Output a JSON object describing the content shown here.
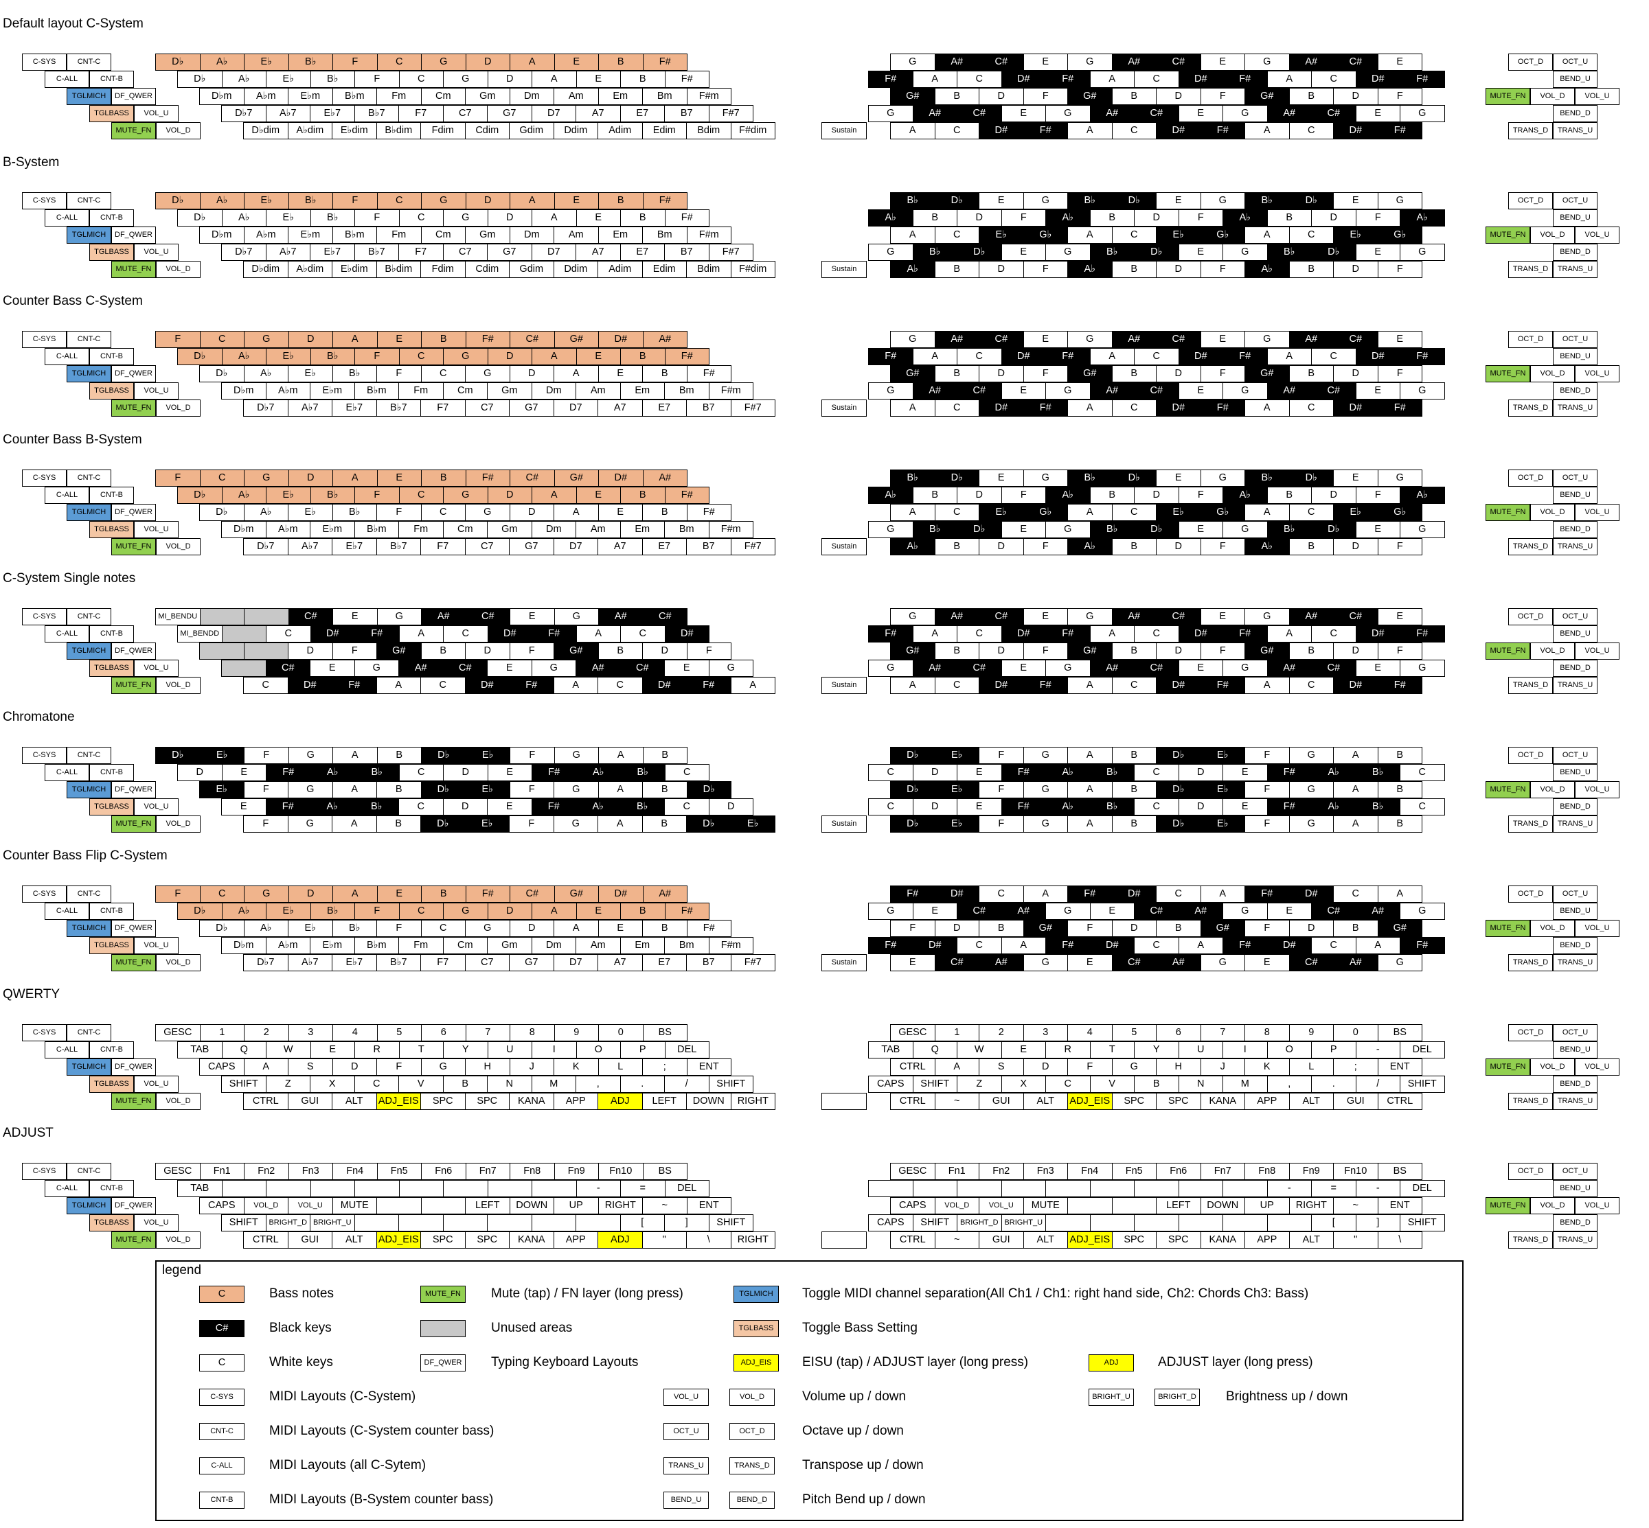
{
  "titles": [
    "Default layout C-System",
    "B-System",
    "Counter Bass C-System",
    "Counter Bass B-System",
    "C-System Single notes",
    "Chromatone",
    "Counter Bass Flip C-System",
    "QWERTY",
    "ADJUST"
  ],
  "controls": {
    "c_sys": "C-SYS",
    "cnt_c": "CNT-C",
    "c_all": "C-ALL",
    "cnt_b": "CNT-B",
    "tglmich": "TGLMICH",
    "df_qwer": "DF_QWER",
    "tglbass": "TGLBASS",
    "vol_u": "VOL_U",
    "vol_d": "VOL_D",
    "mute_fn": "MUTE_FN",
    "oct_d": "OCT_D",
    "oct_u": "OCT_U",
    "bend_u": "BEND_U",
    "bend_d": "BEND_D",
    "trans_d": "TRANS_D",
    "trans_u": "TRANS_U",
    "sustain": "Sustain"
  },
  "layouts": [
    {
      "rows": [
        [
          "b:D♭",
          "b:A♭",
          "b:E♭",
          "b:B♭",
          "b:F",
          "b:C",
          "b:G",
          "b:D",
          "b:A",
          "b:E",
          "b:B",
          "b:F#"
        ],
        [
          "D♭",
          "A♭",
          "E♭",
          "B♭",
          "F",
          "C",
          "G",
          "D",
          "A",
          "E",
          "B",
          "F#"
        ],
        [
          "D♭m",
          "A♭m",
          "E♭m",
          "B♭m",
          "Fm",
          "Cm",
          "Gm",
          "Dm",
          "Am",
          "Em",
          "Bm",
          "F#m"
        ],
        [
          "D♭7",
          "A♭7",
          "E♭7",
          "B♭7",
          "F7",
          "C7",
          "G7",
          "D7",
          "A7",
          "E7",
          "B7",
          "F#7"
        ],
        [
          "D♭dim",
          "A♭dim",
          "E♭dim",
          "B♭dim",
          "Fdim",
          "Cdim",
          "Gdim",
          "Ddim",
          "Adim",
          "Edim",
          "Bdim",
          "F#dim"
        ]
      ],
      "right": "C"
    },
    {
      "rows": [
        [
          "b:D♭",
          "b:A♭",
          "b:E♭",
          "b:B♭",
          "b:F",
          "b:C",
          "b:G",
          "b:D",
          "b:A",
          "b:E",
          "b:B",
          "b:F#"
        ],
        [
          "D♭",
          "A♭",
          "E♭",
          "B♭",
          "F",
          "C",
          "G",
          "D",
          "A",
          "E",
          "B",
          "F#"
        ],
        [
          "D♭m",
          "A♭m",
          "E♭m",
          "B♭m",
          "Fm",
          "Cm",
          "Gm",
          "Dm",
          "Am",
          "Em",
          "Bm",
          "F#m"
        ],
        [
          "D♭7",
          "A♭7",
          "E♭7",
          "B♭7",
          "F7",
          "C7",
          "G7",
          "D7",
          "A7",
          "E7",
          "B7",
          "F#7"
        ],
        [
          "D♭dim",
          "A♭dim",
          "E♭dim",
          "B♭dim",
          "Fdim",
          "Cdim",
          "Gdim",
          "Ddim",
          "Adim",
          "Edim",
          "Bdim",
          "F#dim"
        ]
      ],
      "right": "B"
    },
    {
      "rows": [
        [
          "b:F",
          "b:C",
          "b:G",
          "b:D",
          "b:A",
          "b:E",
          "b:B",
          "b:F#",
          "b:C#",
          "b:G#",
          "b:D#",
          "b:A#"
        ],
        [
          "b:D♭",
          "b:A♭",
          "b:E♭",
          "b:B♭",
          "b:F",
          "b:C",
          "b:G",
          "b:D",
          "b:A",
          "b:E",
          "b:B",
          "b:F#"
        ],
        [
          "D♭",
          "A♭",
          "E♭",
          "B♭",
          "F",
          "C",
          "G",
          "D",
          "A",
          "E",
          "B",
          "F#"
        ],
        [
          "D♭m",
          "A♭m",
          "E♭m",
          "B♭m",
          "Fm",
          "Cm",
          "Gm",
          "Dm",
          "Am",
          "Em",
          "Bm",
          "F#m"
        ],
        [
          "D♭7",
          "A♭7",
          "E♭7",
          "B♭7",
          "F7",
          "C7",
          "G7",
          "D7",
          "A7",
          "E7",
          "B7",
          "F#7"
        ]
      ],
      "right": "C"
    },
    {
      "rows": [
        [
          "b:F",
          "b:C",
          "b:G",
          "b:D",
          "b:A",
          "b:E",
          "b:B",
          "b:F#",
          "b:C#",
          "b:G#",
          "b:D#",
          "b:A#"
        ],
        [
          "b:D♭",
          "b:A♭",
          "b:E♭",
          "b:B♭",
          "b:F",
          "b:C",
          "b:G",
          "b:D",
          "b:A",
          "b:E",
          "b:B",
          "b:F#"
        ],
        [
          "D♭",
          "A♭",
          "E♭",
          "B♭",
          "F",
          "C",
          "G",
          "D",
          "A",
          "E",
          "B",
          "F#"
        ],
        [
          "D♭m",
          "A♭m",
          "E♭m",
          "B♭m",
          "Fm",
          "Cm",
          "Gm",
          "Dm",
          "Am",
          "Em",
          "Bm",
          "F#m"
        ],
        [
          "D♭7",
          "A♭7",
          "E♭7",
          "B♭7",
          "F7",
          "C7",
          "G7",
          "D7",
          "A7",
          "E7",
          "B7",
          "F#7"
        ]
      ],
      "right": "B"
    },
    {
      "rows": [
        [
          "s:MI_BENDU",
          "g:",
          "g:",
          "k:C#",
          "E",
          "G",
          "k:A#",
          "k:C#",
          "E",
          "G",
          "k:A#",
          "k:C#"
        ],
        [
          "s:MI_BENDD",
          "g:",
          "C",
          "k:D#",
          "k:F#",
          "A",
          "C",
          "k:D#",
          "k:F#",
          "A",
          "C",
          "k:D#"
        ],
        [
          "g:",
          "g:",
          "D",
          "F",
          "k:G#",
          "B",
          "D",
          "F",
          "k:G#",
          "B",
          "D",
          "F"
        ],
        [
          "g:",
          "k:C#",
          "E",
          "G",
          "k:A#",
          "k:C#",
          "E",
          "G",
          "k:A#",
          "k:C#",
          "E",
          "G"
        ],
        [
          "C",
          "k:D#",
          "k:F#",
          "A",
          "C",
          "k:D#",
          "k:F#",
          "A",
          "C",
          "k:D#",
          "k:F#",
          "A"
        ]
      ],
      "right": "C"
    },
    {
      "rows": [
        [
          "k:D♭",
          "k:E♭",
          "F",
          "G",
          "A",
          "B",
          "k:D♭",
          "k:E♭",
          "F",
          "G",
          "A",
          "B"
        ],
        [
          "D",
          "E",
          "k:F#",
          "k:A♭",
          "k:B♭",
          "C",
          "D",
          "E",
          "k:F#",
          "k:A♭",
          "k:B♭",
          "C"
        ],
        [
          "k:E♭",
          "F",
          "G",
          "A",
          "B",
          "k:D♭",
          "k:E♭",
          "F",
          "G",
          "A",
          "B",
          "k:D♭"
        ],
        [
          "E",
          "k:F#",
          "k:A♭",
          "k:B♭",
          "C",
          "D",
          "E",
          "k:F#",
          "k:A♭",
          "k:B♭",
          "C",
          "D"
        ],
        [
          "F",
          "G",
          "A",
          "B",
          "k:D♭",
          "k:E♭",
          "F",
          "G",
          "A",
          "B",
          "k:D♭",
          "k:E♭"
        ]
      ],
      "right": "X"
    },
    {
      "rows": [
        [
          "b:F",
          "b:C",
          "b:G",
          "b:D",
          "b:A",
          "b:E",
          "b:B",
          "b:F#",
          "b:C#",
          "b:G#",
          "b:D#",
          "b:A#"
        ],
        [
          "b:D♭",
          "b:A♭",
          "b:E♭",
          "b:B♭",
          "b:F",
          "b:C",
          "b:G",
          "b:D",
          "b:A",
          "b:E",
          "b:B",
          "b:F#"
        ],
        [
          "D♭",
          "A♭",
          "E♭",
          "B♭",
          "F",
          "C",
          "G",
          "D",
          "A",
          "E",
          "B",
          "F#"
        ],
        [
          "D♭m",
          "A♭m",
          "E♭m",
          "B♭m",
          "Fm",
          "Cm",
          "Gm",
          "Dm",
          "Am",
          "Em",
          "Bm",
          "F#m"
        ],
        [
          "D♭7",
          "A♭7",
          "E♭7",
          "B♭7",
          "F7",
          "C7",
          "G7",
          "D7",
          "A7",
          "E7",
          "B7",
          "F#7"
        ]
      ],
      "right": "F"
    },
    {
      "rows": [
        [
          "GESC",
          "1",
          "2",
          "3",
          "4",
          "5",
          "6",
          "7",
          "8",
          "9",
          "0",
          "BS"
        ],
        [
          "TAB",
          "Q",
          "W",
          "E",
          "R",
          "T",
          "Y",
          "U",
          "I",
          "O",
          "P",
          "DEL"
        ],
        [
          "CAPS",
          "A",
          "S",
          "D",
          "F",
          "G",
          "H",
          "J",
          "K",
          "L",
          ";",
          "ENT"
        ],
        [
          "SHIFT",
          "Z",
          "X",
          "C",
          "V",
          "B",
          "N",
          "M",
          ",",
          ".",
          "/",
          "SHIFT"
        ],
        [
          "CTRL",
          "GUI",
          "ALT",
          "y:ADJ_EIS",
          "SPC",
          "SPC",
          "KANA",
          "APP",
          "y:ADJ",
          "LEFT",
          "DOWN",
          "RIGHT"
        ]
      ],
      "right": "Q"
    },
    {
      "rows": [
        [
          "GESC",
          "Fn1",
          "Fn2",
          "Fn3",
          "Fn4",
          "Fn5",
          "Fn6",
          "Fn7",
          "Fn8",
          "Fn9",
          "Fn10",
          "BS"
        ],
        [
          "TAB",
          "",
          "",
          "",
          "",
          "",
          "",
          "",
          "",
          "-",
          "=",
          "DEL"
        ],
        [
          "CAPS",
          "s:VOL_D",
          "s:VOL_U",
          "MUTE",
          "",
          "",
          "LEFT",
          "DOWN",
          "UP",
          "RIGHT",
          "~",
          "ENT"
        ],
        [
          "SHIFT",
          "s:BRIGHT_D",
          "s:BRIGHT_U",
          "",
          "",
          "",
          "",
          "",
          "",
          "[",
          "]",
          "SHIFT"
        ],
        [
          "CTRL",
          "GUI",
          "ALT",
          "y:ADJ_EIS",
          "SPC",
          "SPC",
          "KANA",
          "APP",
          "y:ADJ",
          "\"",
          "\\",
          "RIGHT"
        ]
      ],
      "right": "A"
    }
  ],
  "right_grids": {
    "C": [
      [
        "G",
        "k:A#",
        "k:C#",
        "E",
        "G",
        "k:A#",
        "k:C#",
        "E",
        "G",
        "k:A#",
        "k:C#",
        "E"
      ],
      [
        "k:F#",
        "A",
        "C",
        "k:D#",
        "k:F#",
        "A",
        "C",
        "k:D#",
        "k:F#",
        "A",
        "C",
        "k:D#",
        "k:F#"
      ],
      [
        "k:G#",
        "B",
        "D",
        "F",
        "k:G#",
        "B",
        "D",
        "F",
        "k:G#",
        "B",
        "D",
        "F"
      ],
      [
        "G",
        "k:A#",
        "k:C#",
        "E",
        "G",
        "k:A#",
        "k:C#",
        "E",
        "G",
        "k:A#",
        "k:C#",
        "E",
        "G"
      ],
      [
        "A",
        "C",
        "k:D#",
        "k:F#",
        "A",
        "C",
        "k:D#",
        "k:F#",
        "A",
        "C",
        "k:D#",
        "k:F#"
      ]
    ],
    "B": [
      [
        "k:B♭",
        "k:D♭",
        "E",
        "G",
        "k:B♭",
        "k:D♭",
        "E",
        "G",
        "k:B♭",
        "k:D♭",
        "E",
        "G"
      ],
      [
        "k:A♭",
        "B",
        "D",
        "F",
        "k:A♭",
        "B",
        "D",
        "F",
        "k:A♭",
        "B",
        "D",
        "F",
        "k:A♭"
      ],
      [
        "A",
        "C",
        "k:E♭",
        "k:G♭",
        "A",
        "C",
        "k:E♭",
        "k:G♭",
        "A",
        "C",
        "k:E♭",
        "k:G♭"
      ],
      [
        "G",
        "k:B♭",
        "k:D♭",
        "E",
        "G",
        "k:B♭",
        "k:D♭",
        "E",
        "G",
        "k:B♭",
        "k:D♭",
        "E",
        "G"
      ],
      [
        "k:A♭",
        "B",
        "D",
        "F",
        "k:A♭",
        "B",
        "D",
        "F",
        "k:A♭",
        "B",
        "D",
        "F"
      ]
    ],
    "X": [
      [
        "k:D♭",
        "k:E♭",
        "F",
        "G",
        "A",
        "B",
        "k:D♭",
        "k:E♭",
        "F",
        "G",
        "A",
        "B"
      ],
      [
        "C",
        "D",
        "E",
        "k:F#",
        "k:A♭",
        "k:B♭",
        "C",
        "D",
        "E",
        "k:F#",
        "k:A♭",
        "k:B♭",
        "C"
      ],
      [
        "k:D♭",
        "k:E♭",
        "F",
        "G",
        "A",
        "B",
        "k:D♭",
        "k:E♭",
        "F",
        "G",
        "A",
        "B"
      ],
      [
        "C",
        "D",
        "E",
        "k:F#",
        "k:A♭",
        "k:B♭",
        "C",
        "D",
        "E",
        "k:F#",
        "k:A♭",
        "k:B♭",
        "C"
      ],
      [
        "k:D♭",
        "k:E♭",
        "F",
        "G",
        "A",
        "B",
        "k:D♭",
        "k:E♭",
        "F",
        "G",
        "A",
        "B"
      ]
    ],
    "F": [
      [
        "k:F#",
        "k:D#",
        "C",
        "A",
        "k:F#",
        "k:D#",
        "C",
        "A",
        "k:F#",
        "k:D#",
        "C",
        "A"
      ],
      [
        "G",
        "E",
        "k:C#",
        "k:A#",
        "G",
        "E",
        "k:C#",
        "k:A#",
        "G",
        "E",
        "k:C#",
        "k:A#",
        "G"
      ],
      [
        "F",
        "D",
        "B",
        "k:G#",
        "F",
        "D",
        "B",
        "k:G#",
        "F",
        "D",
        "B",
        "k:G#"
      ],
      [
        "k:F#",
        "k:D#",
        "C",
        "A",
        "k:F#",
        "k:D#",
        "C",
        "A",
        "k:F#",
        "k:D#",
        "C",
        "A",
        "k:F#"
      ],
      [
        "E",
        "k:C#",
        "k:A#",
        "G",
        "E",
        "k:C#",
        "k:A#",
        "G",
        "E",
        "k:C#",
        "k:A#",
        "G"
      ]
    ],
    "Q": [
      [
        "GESC",
        "1",
        "2",
        "3",
        "4",
        "5",
        "6",
        "7",
        "8",
        "9",
        "0",
        "BS"
      ],
      [
        "TAB",
        "Q",
        "W",
        "E",
        "R",
        "T",
        "Y",
        "U",
        "I",
        "O",
        "P",
        "-",
        "DEL"
      ],
      [
        "CTRL",
        "A",
        "S",
        "D",
        "F",
        "G",
        "H",
        "J",
        "K",
        "L",
        ";",
        "ENT"
      ],
      [
        "CAPS",
        "SHIFT",
        "Z",
        "X",
        "C",
        "V",
        "B",
        "N",
        "M",
        ",",
        ".",
        "/",
        "SHIFT"
      ],
      [
        "CTRL",
        "~",
        "GUI",
        "ALT",
        "y:ADJ_EIS",
        "SPC",
        "SPC",
        "KANA",
        "APP",
        "ALT",
        "GUI",
        "CTRL"
      ]
    ],
    "A": [
      [
        "GESC",
        "Fn1",
        "Fn2",
        "Fn3",
        "Fn4",
        "Fn5",
        "Fn6",
        "Fn7",
        "Fn8",
        "Fn9",
        "Fn10",
        "BS"
      ],
      [
        "",
        "",
        "",
        "",
        "",
        "",
        "",
        "",
        "",
        "-",
        "=",
        "-",
        "DEL"
      ],
      [
        "CAPS",
        "s:VOL_D",
        "s:VOL_U",
        "MUTE",
        "",
        "",
        "LEFT",
        "DOWN",
        "UP",
        "RIGHT",
        "~",
        "ENT"
      ],
      [
        "CAPS",
        "SHIFT",
        "s:BRIGHT_D",
        "s:BRIGHT_U",
        "",
        "",
        "",
        "",
        "",
        "",
        "[",
        "]",
        "SHIFT"
      ],
      [
        "CTRL",
        "~",
        "GUI",
        "ALT",
        "y:ADJ_EIS",
        "SPC",
        "SPC",
        "KANA",
        "APP",
        "ALT",
        "\"",
        "\\"
      ]
    ]
  },
  "legend": {
    "title": "legend",
    "items": [
      {
        "swatch": "C",
        "style": "bass",
        "text": "Bass notes",
        "col": 0,
        "row": 0
      },
      {
        "swatch": "MUTE_FN",
        "style": "grn",
        "text": "Mute (tap) / FN layer (long press)",
        "col": 1,
        "row": 0
      },
      {
        "swatch": "TGLMICH",
        "style": "blu",
        "text": "Toggle MIDI channel separation(All Ch1 / Ch1: right hand side, Ch2: Chords Ch3: Bass)",
        "col": 2,
        "row": 0
      },
      {
        "swatch": "C#",
        "style": "blk",
        "text": "Black keys",
        "col": 0,
        "row": 1
      },
      {
        "swatch": "",
        "style": "gry",
        "text": "Unused areas",
        "col": 1,
        "row": 1
      },
      {
        "swatch": "TGLBASS",
        "style": "peach",
        "text": "Toggle Bass Setting",
        "col": 2,
        "row": 1
      },
      {
        "swatch": "C",
        "style": "wht",
        "text": "White keys",
        "col": 0,
        "row": 2
      },
      {
        "swatch": "DF_QWER",
        "style": "wht",
        "text": "Typing Keyboard Layouts",
        "col": 1,
        "row": 2
      },
      {
        "swatch": "ADJ_EIS",
        "style": "yel",
        "text": "EISU (tap) / ADJUST layer (long press)",
        "col": 2,
        "row": 2
      },
      {
        "swatch": "ADJ",
        "style": "yel",
        "text": "ADJUST layer (long press)",
        "col": 3,
        "row": 2
      },
      {
        "swatch": "C-SYS",
        "style": "wht",
        "text": "MIDI Layouts (C-System)",
        "col": 0,
        "row": 3
      },
      {
        "swatch": "CNT-C",
        "style": "wht",
        "text": "MIDI Layouts (C-System counter bass)",
        "col": 0,
        "row": 4
      },
      {
        "swatch": "C-ALL",
        "style": "wht",
        "text": "MIDI Layouts (all C-Sytem)",
        "col": 0,
        "row": 5
      },
      {
        "swatch": "CNT-B",
        "style": "wht",
        "text": "MIDI Layouts (B-System counter bass)",
        "col": 0,
        "row": 6
      }
    ],
    "pairs": [
      {
        "a": "VOL_U",
        "b": "VOL_D",
        "text": "Volume up / down",
        "row": 3
      },
      {
        "a": "OCT_U",
        "b": "OCT_D",
        "text": "Octave up / down",
        "row": 4
      },
      {
        "a": "TRANS_U",
        "b": "TRANS_D",
        "text": "Transpose up / down",
        "row": 5
      },
      {
        "a": "BEND_U",
        "b": "BEND_D",
        "text": "Pitch Bend up / down",
        "row": 6
      }
    ],
    "bright": {
      "a": "BRIGHT_U",
      "b": "BRIGHT_D",
      "text": "Brightness up / down"
    }
  }
}
